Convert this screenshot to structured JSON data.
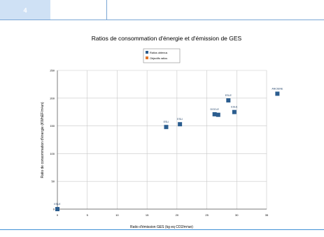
{
  "page": {
    "section_number": "4"
  },
  "chart_data": {
    "type": "scatter",
    "title": "Ratios de consommation d'énergie et d'émission de GES",
    "xlabel": "Ratio d'émission GES (kg eq CO2/m²an)",
    "ylabel": "Ratio de consommation d'énergie (KWhEF/m²an)",
    "xlim": [
      0,
      35
    ],
    "ylim": [
      0,
      250
    ],
    "xticks": [
      0,
      5,
      10,
      15,
      20,
      25,
      30,
      35
    ],
    "yticks": [
      0,
      50,
      100,
      150,
      200,
      250
    ],
    "grid": true,
    "legend_position": "top-center",
    "series": [
      {
        "name": "Ratios obtenus",
        "color": "#2b5d8f",
        "points": [
          {
            "label": "ESLE",
            "x": 0,
            "y": 0
          },
          {
            "label": "ESLI",
            "x": 18.2,
            "y": 148
          },
          {
            "label": "ESLI",
            "x": 20.5,
            "y": 153
          },
          {
            "label": "DOCLE",
            "x": 26.3,
            "y": 171
          },
          {
            "label": "",
            "x": 26.9,
            "y": 170
          },
          {
            "label": "ESLE",
            "x": 28.6,
            "y": 196
          },
          {
            "label": "ESLE",
            "x": 29.6,
            "y": 175
          },
          {
            "label": "ANCIENE",
            "x": 36.8,
            "y": 208
          }
        ]
      },
      {
        "name": "Objectifs ratios",
        "color": "#e2772c",
        "points": []
      }
    ]
  }
}
